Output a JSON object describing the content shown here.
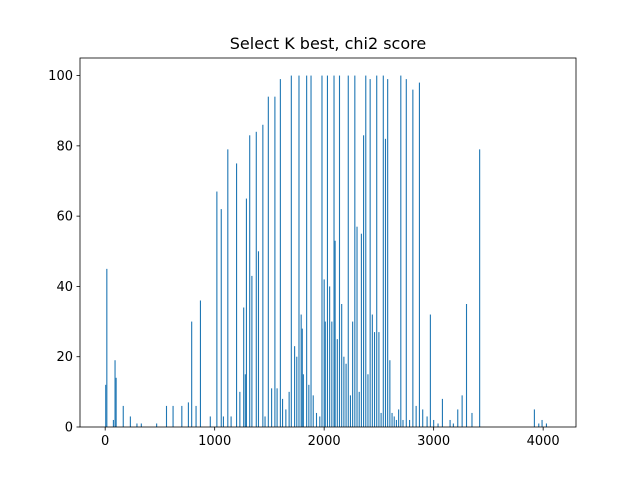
{
  "chart_data": {
    "type": "bar",
    "title": "Select K best, chi2 score",
    "xlabel": "",
    "ylabel": "",
    "xlim": [
      -230,
      4300
    ],
    "ylim": [
      0,
      105
    ],
    "xticks": [
      0,
      1000,
      2000,
      3000,
      4000
    ],
    "yticks": [
      0,
      20,
      40,
      60,
      80,
      100
    ],
    "grid": false,
    "legend": false,
    "bar_color": "#1f77b4",
    "x": [
      5,
      15,
      75,
      90,
      100,
      165,
      230,
      290,
      330,
      470,
      560,
      620,
      700,
      760,
      790,
      830,
      870,
      960,
      1020,
      1060,
      1080,
      1120,
      1150,
      1200,
      1230,
      1265,
      1280,
      1290,
      1320,
      1340,
      1380,
      1400,
      1440,
      1460,
      1490,
      1520,
      1550,
      1570,
      1600,
      1620,
      1650,
      1680,
      1700,
      1730,
      1750,
      1770,
      1790,
      1800,
      1810,
      1840,
      1860,
      1880,
      1900,
      1930,
      1960,
      1980,
      2000,
      2010,
      2030,
      2050,
      2070,
      2090,
      2100,
      2120,
      2140,
      2160,
      2180,
      2200,
      2220,
      2240,
      2260,
      2280,
      2300,
      2320,
      2340,
      2360,
      2380,
      2400,
      2420,
      2440,
      2460,
      2480,
      2500,
      2520,
      2540,
      2560,
      2580,
      2600,
      2620,
      2640,
      2660,
      2680,
      2700,
      2720,
      2750,
      2780,
      2810,
      2840,
      2870,
      2900,
      2940,
      2970,
      3000,
      3040,
      3080,
      3150,
      3180,
      3220,
      3260,
      3300,
      3350,
      3420,
      3920,
      3960,
      3990,
      4030
    ],
    "values": [
      12,
      45,
      2,
      19,
      14,
      6,
      3,
      1,
      1,
      1,
      6,
      6,
      6,
      7,
      30,
      6,
      36,
      3,
      67,
      62,
      3,
      79,
      3,
      75,
      10,
      34,
      15,
      65,
      83,
      43,
      84,
      50,
      86,
      3,
      94,
      11,
      94,
      11,
      99,
      8,
      5,
      10,
      100,
      23,
      20,
      100,
      32,
      28,
      15,
      100,
      12,
      100,
      9,
      4,
      3,
      100,
      42,
      30,
      100,
      40,
      30,
      100,
      53,
      25,
      100,
      35,
      20,
      18,
      100,
      9,
      30,
      100,
      57,
      10,
      55,
      83,
      100,
      15,
      99,
      32,
      27,
      100,
      27,
      4,
      100,
      82,
      99,
      19,
      4,
      3,
      2,
      5,
      100,
      2,
      99,
      2,
      96,
      6,
      98,
      5,
      3,
      32,
      2,
      1,
      8,
      2,
      1,
      5,
      9,
      35,
      4,
      79,
      5,
      1,
      2,
      1
    ]
  }
}
